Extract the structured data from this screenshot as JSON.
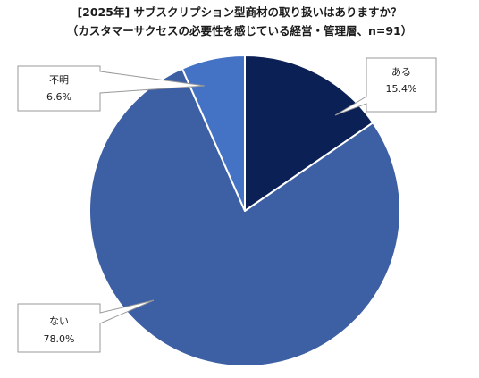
{
  "chart_data": {
    "type": "pie",
    "title": "[2025年] サブスクリプション型商材の取り扱いはありますか？",
    "subtitle": "（カスタマーサクセスの必要性を感じている経営・管理層、n=91）",
    "slices": [
      {
        "label": "ある",
        "value": 15.4,
        "value_label": "15.4%",
        "color": "#0b2156"
      },
      {
        "label": "ない",
        "value": 78.0,
        "value_label": "78.0%",
        "color": "#3d5fa4"
      },
      {
        "label": "不明",
        "value": 6.6,
        "value_label": "6.6%",
        "color": "#4472c4"
      }
    ],
    "start_angle": "12 o'clock",
    "direction": "clockwise",
    "labels": "callouts"
  }
}
